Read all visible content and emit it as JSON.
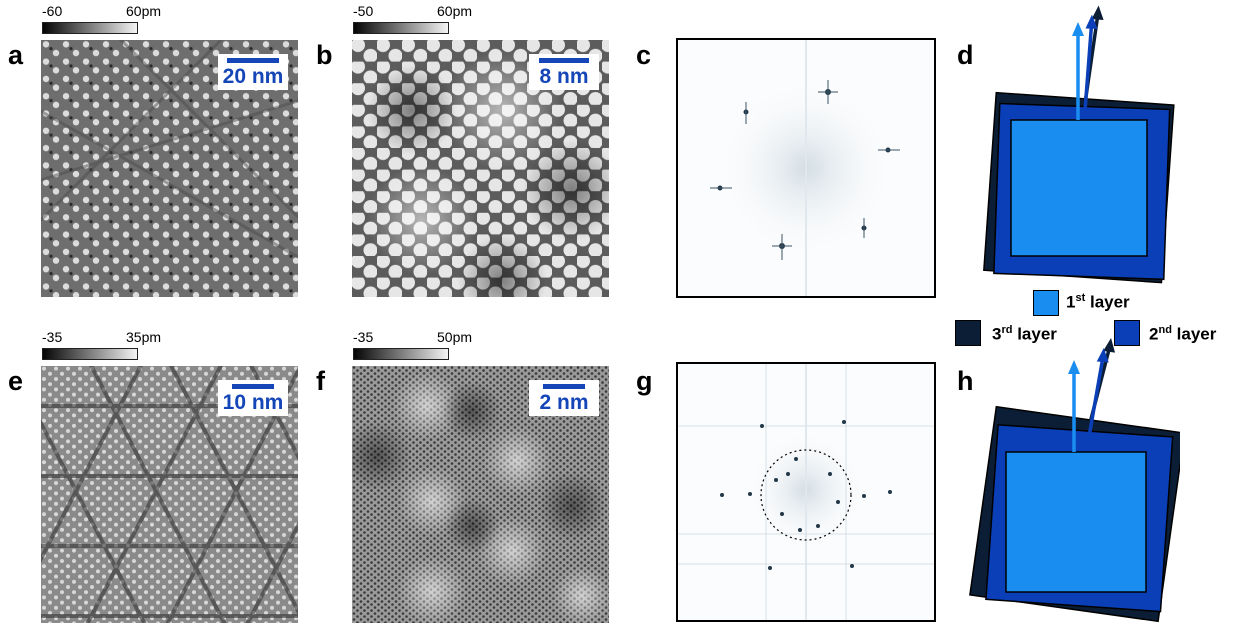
{
  "panels": {
    "a": {
      "label": "a",
      "cbar_min": "-60",
      "cbar_max": "60pm",
      "scalebar": "20 nm"
    },
    "b": {
      "label": "b",
      "cbar_min": "-50",
      "cbar_max": "60pm",
      "scalebar": "8 nm"
    },
    "c": {
      "label": "c"
    },
    "d": {
      "label": "d"
    },
    "e": {
      "label": "e",
      "cbar_min": "-35",
      "cbar_max": "35pm",
      "scalebar": "10 nm"
    },
    "f": {
      "label": "f",
      "cbar_min": "-35",
      "cbar_max": "50pm",
      "scalebar": "2 nm"
    },
    "g": {
      "label": "g"
    },
    "h": {
      "label": "h"
    }
  },
  "legend": {
    "layer1": {
      "num": "1",
      "sup": "st",
      "text": " layer"
    },
    "layer2": {
      "num": "2",
      "sup": "nd",
      "text": " layer"
    },
    "layer3": {
      "num": "3",
      "sup": "rd",
      "text": " layer"
    }
  },
  "colors": {
    "layer1": "#1a8ef0",
    "layer2": "#0a3fb8",
    "layer3": "#0c1e36",
    "scalebar": "#1446b8"
  }
}
